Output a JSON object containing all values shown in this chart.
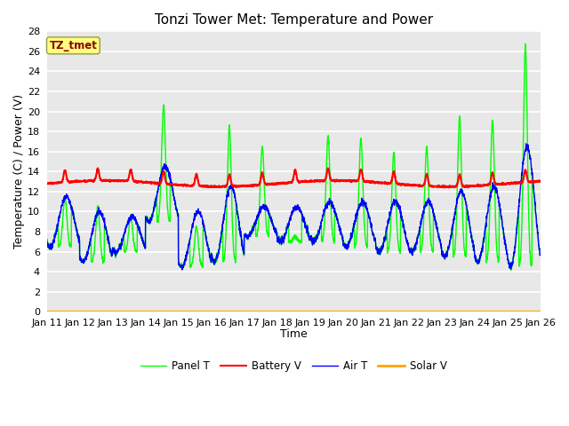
{
  "title": "Tonzi Tower Met: Temperature and Power",
  "xlabel": "Time",
  "ylabel": "Temperature (C) / Power (V)",
  "ylim": [
    0,
    28
  ],
  "yticks": [
    0,
    2,
    4,
    6,
    8,
    10,
    12,
    14,
    16,
    18,
    20,
    22,
    24,
    26,
    28
  ],
  "xlim": [
    0,
    15
  ],
  "xtick_labels": [
    "Jan 11",
    "Jan 12",
    "Jan 13",
    "Jan 14",
    "Jan 15",
    "Jan 16",
    "Jan 17",
    "Jan 18",
    "Jan 19",
    "Jan 20",
    "Jan 21",
    "Jan 22",
    "Jan 23",
    "Jan 24",
    "Jan 25",
    "Jan 26"
  ],
  "xtick_positions": [
    0,
    1,
    2,
    3,
    4,
    5,
    6,
    7,
    8,
    9,
    10,
    11,
    12,
    13,
    14,
    15
  ],
  "colors": {
    "panel_t": "#00FF00",
    "battery_v": "#FF0000",
    "air_t": "#0000FF",
    "solar_v": "#FFA500"
  },
  "legend_labels": [
    "Panel T",
    "Battery V",
    "Air T",
    "Solar V"
  ],
  "annotation_text": "TZ_tmet",
  "annotation_color": "#8B0000",
  "annotation_bg": "#FFFF80",
  "background_color": "#E8E8E8",
  "grid_color": "#FFFFFF",
  "title_fontsize": 11,
  "axis_fontsize": 9,
  "tick_fontsize": 8,
  "figsize": [
    6.4,
    4.8
  ],
  "dpi": 100
}
